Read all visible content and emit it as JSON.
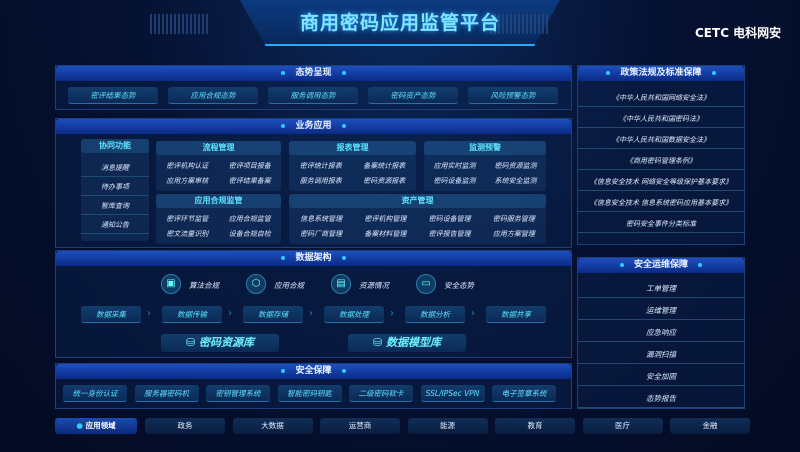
{
  "title": "商用密码应用监管平台",
  "logo": "CETC 电科网安",
  "situation": {
    "header": "态势呈现",
    "items": [
      "密评结果态势",
      "应用合规态势",
      "服务调用态势",
      "密码资产态势",
      "风险预警态势"
    ]
  },
  "business": {
    "header": "业务应用",
    "collab": {
      "header": "协同功能",
      "items": [
        "消息提醒",
        "待办事项",
        "智库查询",
        "通知公告"
      ]
    },
    "process": {
      "header": "流程管理",
      "items": [
        "密评机构认证",
        "密评项目报备",
        "应用方案审核",
        "密评结果备案"
      ]
    },
    "compliance": {
      "header": "应用合规监管",
      "items": [
        "密评环节监管",
        "应用合规监管",
        "密文流量识别",
        "设备合规自检"
      ]
    },
    "report": {
      "header": "报表管理",
      "items": [
        "密评统计报表",
        "备案统计报表",
        "服务调用报表",
        "密码资源报表"
      ]
    },
    "monitor": {
      "header": "监测预警",
      "items": [
        "应用实时监测",
        "密码资源监测",
        "密码设备监测",
        "系统安全监测"
      ]
    },
    "asset": {
      "header": "资产管理",
      "items": [
        "信息系统管理",
        "密评机构管理",
        "密码设备管理",
        "密码服务管理",
        "密码厂商管理",
        "备案材料管理",
        "密评报告管理",
        "应用方案管理"
      ]
    }
  },
  "data_arch": {
    "header": "数据架构",
    "features": [
      {
        "label": "算法合规",
        "icon": "monitor-icon"
      },
      {
        "label": "应用合规",
        "icon": "cube-icon"
      },
      {
        "label": "资源情况",
        "icon": "layout-icon"
      },
      {
        "label": "安全态势",
        "icon": "screen-icon"
      }
    ],
    "flow": [
      "数据采集",
      "数据传输",
      "数据存储",
      "数据处理",
      "数据分析",
      "数据共享"
    ],
    "stores": [
      "密码资源库",
      "数据模型库"
    ]
  },
  "security": {
    "header": "安全保障",
    "items": [
      "统一身份认证",
      "服务器密码机",
      "密钥管理系统",
      "智能密码钥匙",
      "二级密码软卡",
      "SSL/IPSec VPN",
      "电子签章系统"
    ]
  },
  "domains": {
    "label": "应用领域",
    "items": [
      "政务",
      "大数据",
      "运营商",
      "能源",
      "教育",
      "医疗",
      "金融"
    ]
  },
  "policy": {
    "header": "政策法规及标准保障",
    "items": [
      "《中华人民共和国网络安全法》",
      "《中华人民共和国密码法》",
      "《中华人民共和国数据安全法》",
      "《商用密码管理条例》",
      "《信息安全技术 网络安全等级保护基本要求》",
      "《信息安全技术 信息系统密码应用基本要求》",
      "密码安全事件分类标准"
    ]
  },
  "ops": {
    "header": "安全运维保障",
    "items": [
      "工单管理",
      "运维管理",
      "应急响应",
      "漏洞扫描",
      "安全加固",
      "态势报告"
    ]
  }
}
